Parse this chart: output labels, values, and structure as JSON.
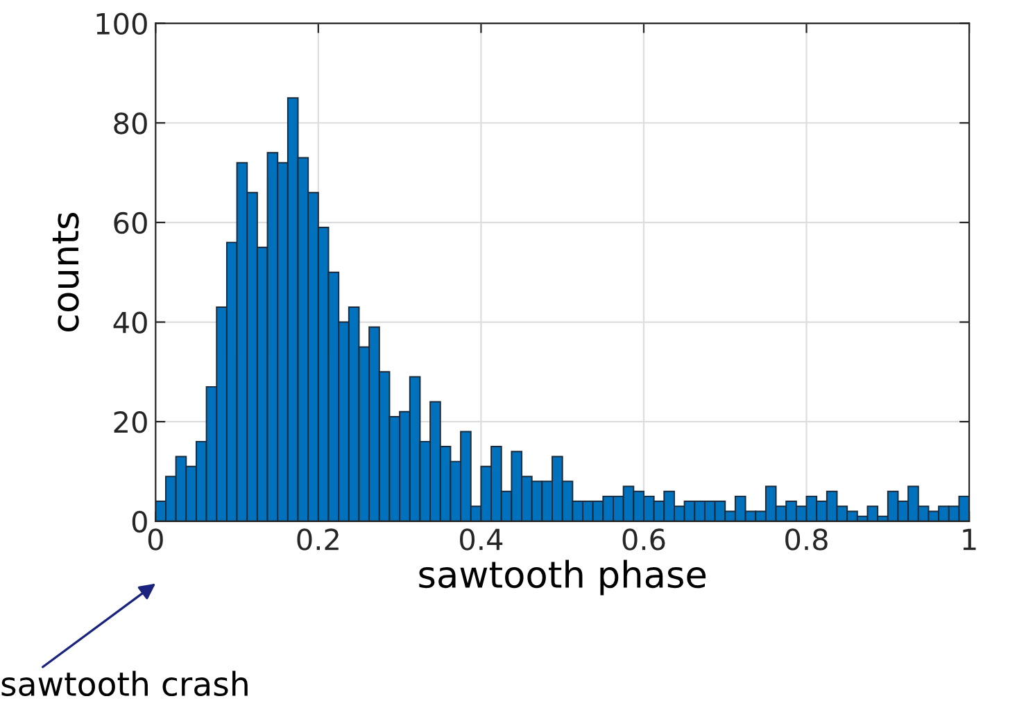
{
  "chart_data": {
    "type": "histogram",
    "xlabel": "sawtooth phase",
    "ylabel": "counts",
    "bins": [
      0,
      0.0125,
      0.025,
      0.0375,
      0.05,
      0.0625,
      0.075,
      0.0875,
      0.1,
      0.1125,
      0.125,
      0.1375,
      0.15,
      0.1625,
      0.175,
      0.1875,
      0.2,
      0.2125,
      0.225,
      0.2375,
      0.25,
      0.2625,
      0.275,
      0.2875,
      0.3,
      0.3125,
      0.325,
      0.3375,
      0.35,
      0.3625,
      0.375,
      0.3875,
      0.4,
      0.4125,
      0.425,
      0.4375,
      0.45,
      0.4625,
      0.475,
      0.4875,
      0.5,
      0.5125,
      0.525,
      0.5375,
      0.55,
      0.5625,
      0.575,
      0.5875,
      0.6,
      0.6125,
      0.625,
      0.6375,
      0.65,
      0.6625,
      0.675,
      0.6875,
      0.7,
      0.7125,
      0.725,
      0.7375,
      0.75,
      0.7625,
      0.775,
      0.7875,
      0.8,
      0.8125,
      0.825,
      0.8375,
      0.85,
      0.8625,
      0.875,
      0.8875,
      0.9,
      0.9125,
      0.925,
      0.9375,
      0.95,
      0.9625,
      0.975,
      0.9875,
      1
    ],
    "values": [
      4,
      9,
      13,
      11,
      16,
      27,
      43,
      56,
      72,
      66,
      55,
      74,
      72,
      85,
      73,
      66,
      59,
      50,
      40,
      43,
      35,
      39,
      30,
      21,
      22,
      29,
      16,
      24,
      15,
      12,
      18,
      3,
      11,
      15,
      6,
      14,
      9,
      8,
      8,
      13,
      8,
      4,
      4,
      4,
      5,
      5,
      7,
      6,
      5,
      4,
      6,
      3,
      4,
      4,
      4,
      4,
      2,
      5,
      2,
      2,
      7,
      3,
      4,
      3,
      5,
      4,
      6,
      3,
      2,
      1,
      3,
      1,
      6,
      4,
      7,
      3,
      2,
      3,
      3,
      5
    ],
    "color": "#0072bd",
    "xlim": [
      0,
      1
    ],
    "xticks": [
      0,
      0.2,
      0.4,
      0.6,
      0.8,
      1
    ],
    "ylim": [
      0,
      100
    ],
    "yticks": [
      0,
      20,
      40,
      60,
      80,
      100
    ],
    "grid": true,
    "annotations": [
      "sawtooth crash"
    ]
  }
}
